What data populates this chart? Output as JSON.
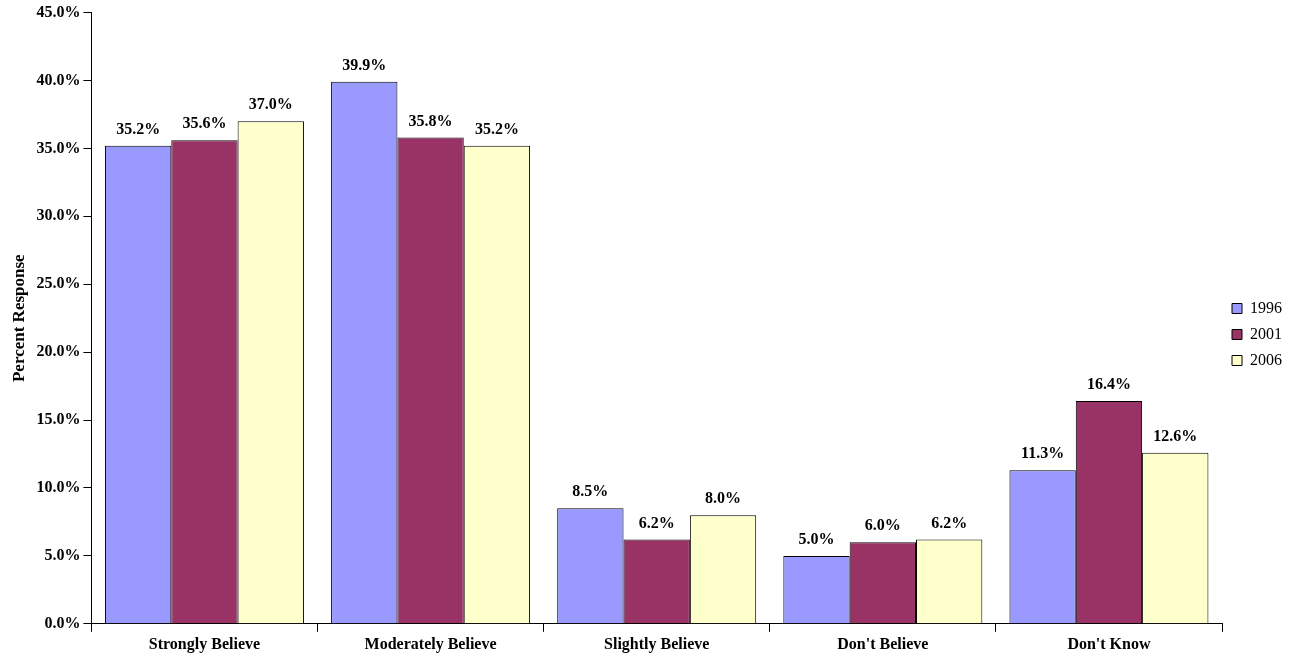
{
  "chart_data": {
    "type": "bar",
    "ylabel": "Percent Response",
    "categories": [
      "Strongly Believe",
      "Moderately Believe",
      "Slightly Believe",
      "Don't Believe",
      "Don't Know"
    ],
    "series": [
      {
        "name": "1996",
        "color": "#9999ff",
        "values": [
          35.2,
          39.9,
          8.5,
          5.0,
          11.3
        ],
        "value_labels": [
          "35.2%",
          "39.9%",
          "8.5%",
          "5.0%",
          "11.3%"
        ]
      },
      {
        "name": "2001",
        "color": "#993366",
        "values": [
          35.6,
          35.8,
          6.2,
          6.0,
          16.4
        ],
        "value_labels": [
          "35.6%",
          "35.8%",
          "6.2%",
          "6.0%",
          "16.4%"
        ]
      },
      {
        "name": "2006",
        "color": "#ffffcc",
        "values": [
          37.0,
          35.2,
          8.0,
          6.2,
          12.6
        ],
        "value_labels": [
          "37.0%",
          "35.2%",
          "8.0%",
          "6.2%",
          "12.6%"
        ]
      }
    ],
    "ylim": [
      0,
      45
    ],
    "yticks": [
      {
        "value": 0,
        "label": "0.0%"
      },
      {
        "value": 5,
        "label": "5.0%"
      },
      {
        "value": 10,
        "label": "10.0%"
      },
      {
        "value": 15,
        "label": "15.0%"
      },
      {
        "value": 20,
        "label": "20.0%"
      },
      {
        "value": 25,
        "label": "25.0%"
      },
      {
        "value": 30,
        "label": "30.0%"
      },
      {
        "value": 35,
        "label": "35.0%"
      },
      {
        "value": 40,
        "label": "40.0%"
      },
      {
        "value": 45,
        "label": "45.0%"
      }
    ],
    "grid": false,
    "legend": "right"
  }
}
